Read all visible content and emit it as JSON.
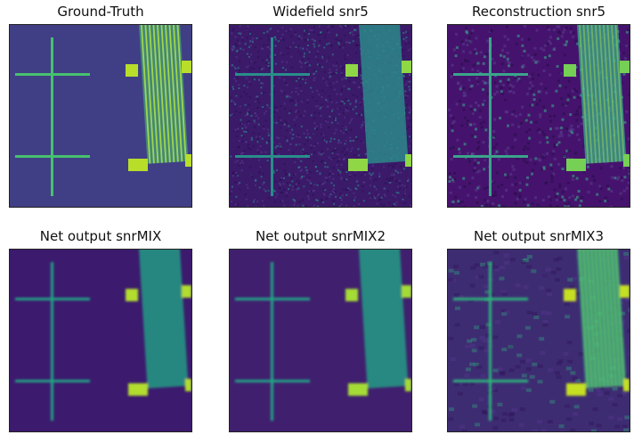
{
  "figure": {
    "panels": [
      {
        "title": "Ground-Truth",
        "style": "clean",
        "colors": {
          "bg": "#403f86",
          "fg": "#47c16e",
          "pad": "#b8de29"
        }
      },
      {
        "title": "Widefield snr5",
        "style": "noisy",
        "colors": {
          "bg": "#3b1a6a",
          "fg": "#2a8d8b",
          "pad": "#8fd744"
        }
      },
      {
        "title": "Reconstruction snr5",
        "style": "speckle",
        "colors": {
          "bg": "#45136d",
          "fg": "#3aa48a",
          "pad": "#74d055"
        }
      },
      {
        "title": "Net output snrMIX",
        "style": "smooth",
        "colors": {
          "bg": "#3c1a6e",
          "fg": "#22a385",
          "pad": "#b2dd2d"
        }
      },
      {
        "title": "Net output snrMIX2",
        "style": "smooth",
        "colors": {
          "bg": "#40206e",
          "fg": "#20a486",
          "pad": "#a5db36"
        }
      },
      {
        "title": "Net output snrMIX3",
        "style": "textured",
        "colors": {
          "bg": "#3e2c73",
          "fg": "#2fb47c",
          "pad": "#c5e021"
        }
      }
    ]
  }
}
